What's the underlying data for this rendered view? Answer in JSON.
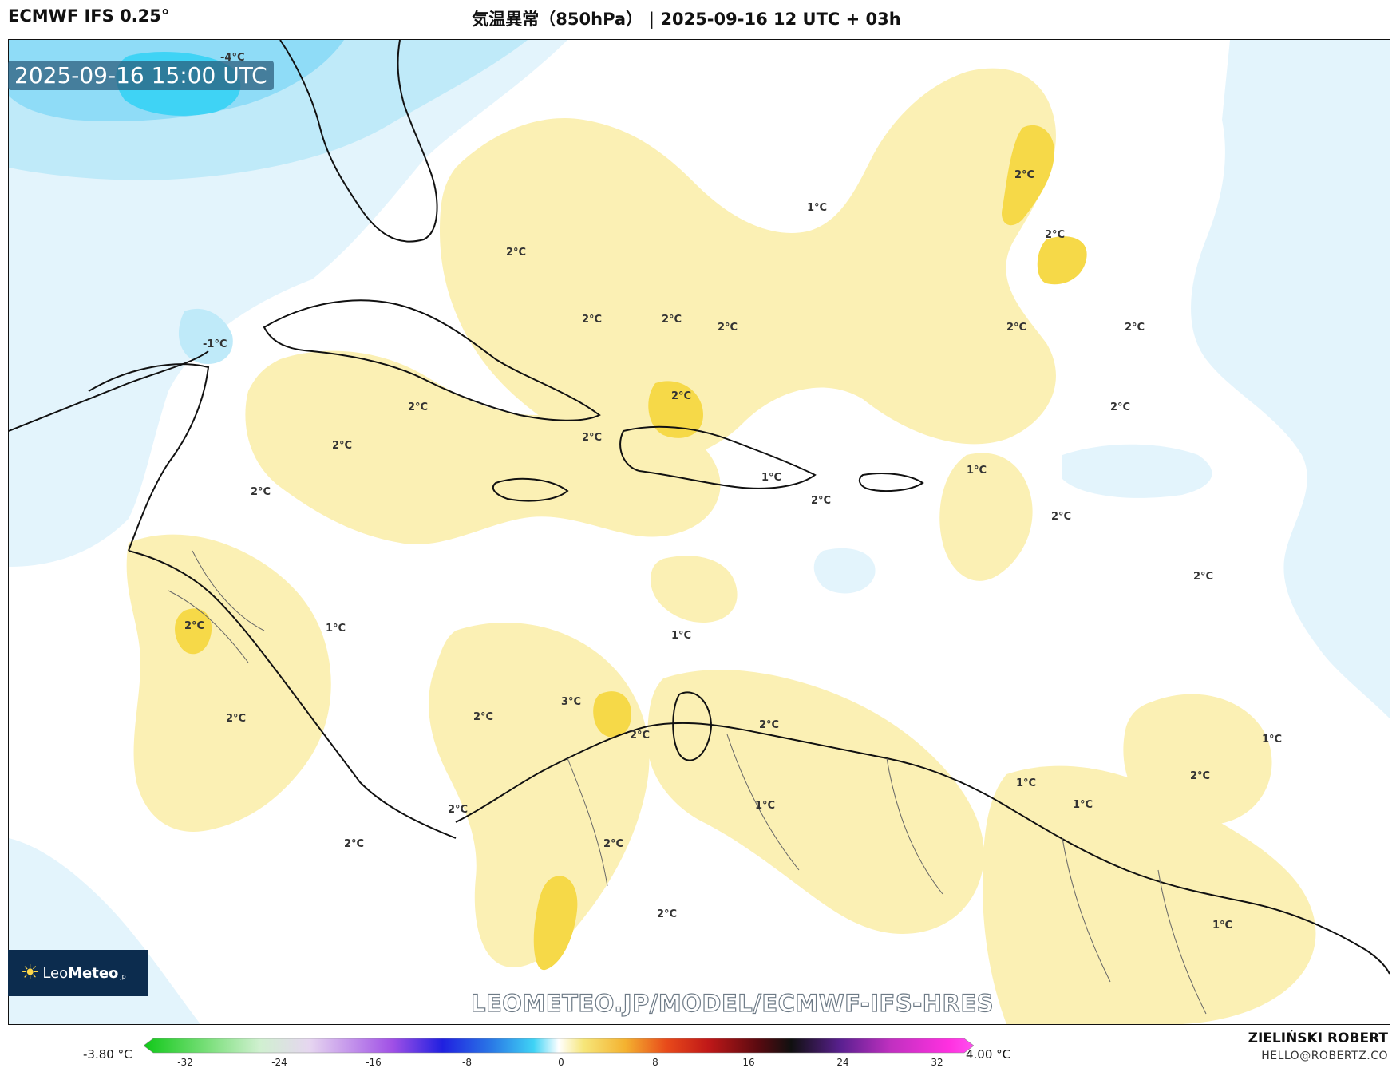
{
  "header": {
    "model": "ECMWF IFS 0.25°",
    "title": "気温異常（850hPa） | 2025-09-16 12 UTC + 03h"
  },
  "valid_time": "2025-09-16 15:00 UTC",
  "logo": {
    "brand_a": "Leo",
    "brand_b": "Meteo",
    "suffix": "jp"
  },
  "watermark": "LEOMETEO.JP/MODEL/ECMWF-IFS-HRES",
  "footer": {
    "author": "ZIELIŃSKI ROBERT",
    "email": "HELLO@ROBERTZ.CO"
  },
  "legend": {
    "min_label": "-3.80 °C",
    "max_label": "4.00 °C",
    "ticks": [
      "-32",
      "-24",
      "-16",
      "-8",
      "0",
      "8",
      "16",
      "24",
      "32"
    ]
  },
  "contour_labels": [
    "-4°C",
    "-1°C",
    "1°C",
    "1°C",
    "1°C",
    "1°C",
    "1°C",
    "1°C",
    "1°C",
    "1°C",
    "1°C",
    "1°C",
    "2°C",
    "2°C",
    "2°C",
    "2°C",
    "2°C",
    "2°C",
    "2°C",
    "2°C",
    "2°C",
    "2°C",
    "2°C",
    "2°C",
    "2°C",
    "2°C",
    "2°C",
    "2°C",
    "2°C",
    "2°C",
    "2°C",
    "2°C",
    "2°C",
    "2°C",
    "2°C",
    "2°C",
    "2°C",
    "2°C",
    "2°C",
    "3°C"
  ],
  "colors": {
    "cold_light": "#d9f1fc",
    "cold_mid": "#a6e3f8",
    "cold_strong": "#3fd3f5",
    "warm_light": "#fbf0b4",
    "warm_strong": "#f6d948",
    "coast": "#111111",
    "border": "#666666"
  }
}
